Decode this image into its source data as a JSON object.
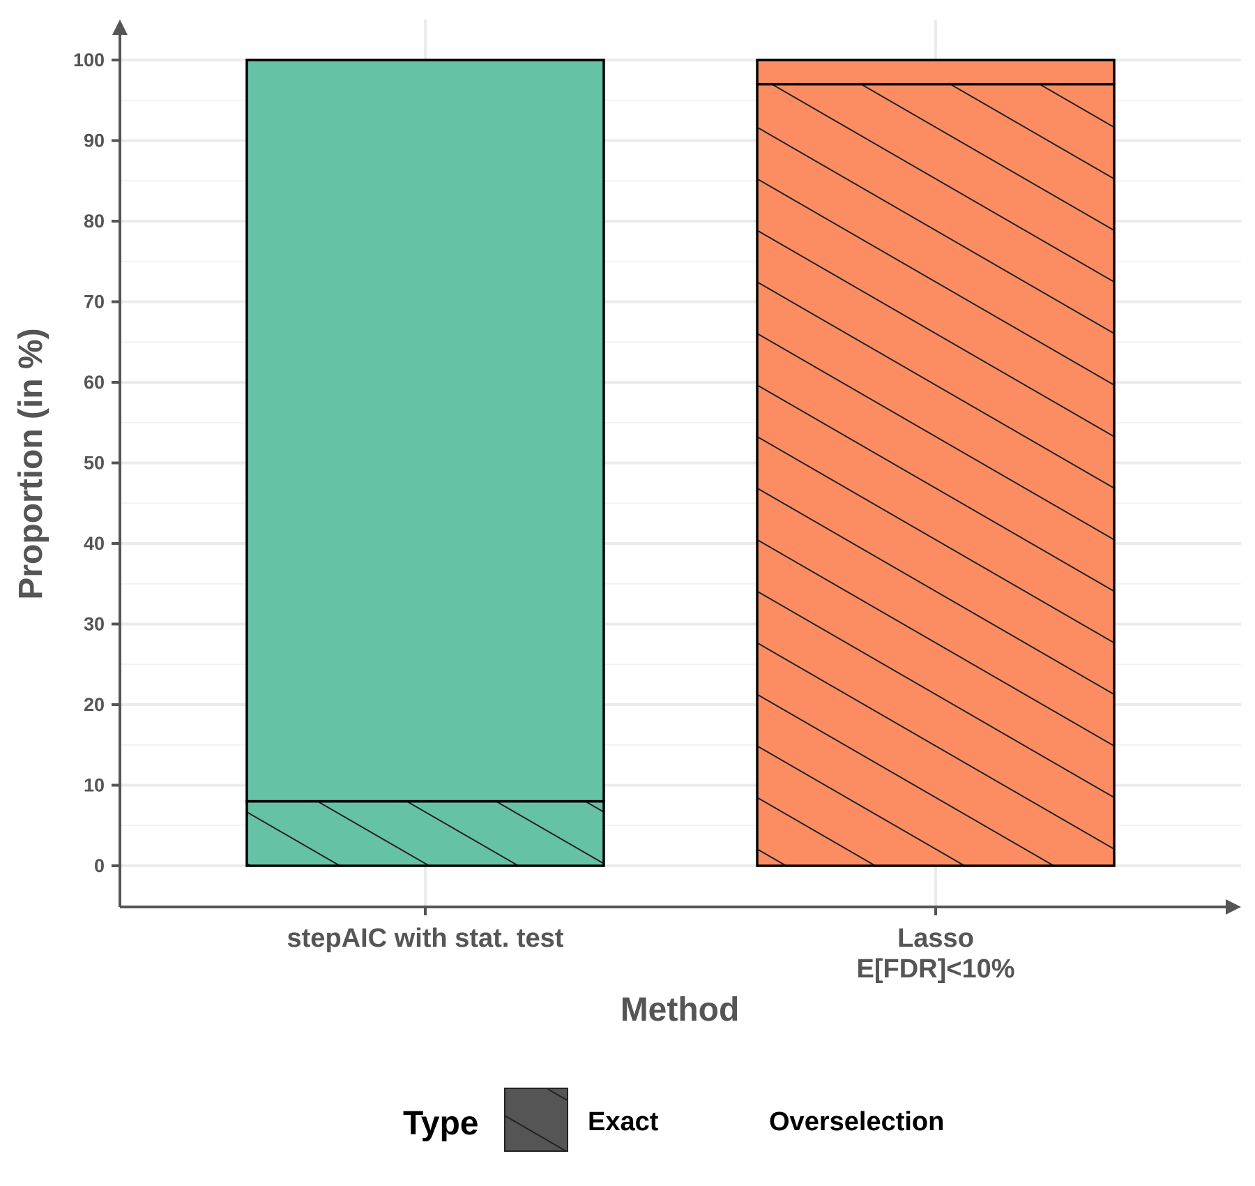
{
  "chart_data": {
    "type": "bar",
    "stacked": true,
    "categories": [
      [
        "stepAIC with stat. test"
      ],
      [
        "Lasso",
        "E[FDR]<10%"
      ]
    ],
    "category_colors": [
      "#66c2a5",
      "#fc8d62"
    ],
    "series": [
      {
        "name": "Exact",
        "pattern": "hatched",
        "values": [
          8,
          97
        ]
      },
      {
        "name": "Overselection",
        "pattern": "solid",
        "values": [
          92,
          3
        ]
      }
    ],
    "xlabel": "Method",
    "ylabel": "Proportion (in %)",
    "ylim": [
      -5,
      105
    ],
    "yticks": [
      0,
      10,
      20,
      30,
      40,
      50,
      60,
      70,
      80,
      90,
      100
    ],
    "grid": true,
    "legend": {
      "title": "Type",
      "position": "bottom"
    }
  }
}
